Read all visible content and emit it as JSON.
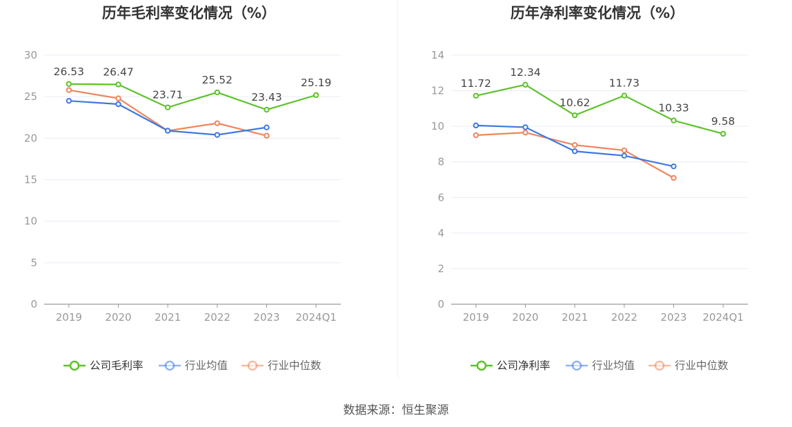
{
  "source_label": "数据来源：恒生聚源",
  "colors": {
    "company": "#5dc22a",
    "avg": "#3f78e0",
    "median": "#f0845c",
    "axis": "#999999",
    "grid": "#e9ecf5"
  },
  "chart_data": [
    {
      "type": "line",
      "title": "历年毛利率变化情况（%）",
      "categories": [
        "2019",
        "2020",
        "2021",
        "2022",
        "2023",
        "2024Q1"
      ],
      "ylim": [
        0,
        30
      ],
      "yticks": [
        0,
        5,
        10,
        15,
        20,
        25,
        30
      ],
      "grid": true,
      "legend": "bottom",
      "series": [
        {
          "name": "公司毛利率",
          "key": "company",
          "values": [
            26.53,
            26.47,
            23.71,
            25.52,
            23.43,
            25.19
          ],
          "labels": [
            "26.53",
            "26.47",
            "23.71",
            "25.52",
            "23.43",
            "25.19"
          ]
        },
        {
          "name": "行业均值",
          "key": "avg",
          "values": [
            24.5,
            24.1,
            20.9,
            20.4,
            21.3,
            null
          ]
        },
        {
          "name": "行业中位数",
          "key": "median",
          "values": [
            25.8,
            24.8,
            20.9,
            21.8,
            20.3,
            null
          ]
        }
      ]
    },
    {
      "type": "line",
      "title": "历年净利率变化情况（%）",
      "categories": [
        "2019",
        "2020",
        "2021",
        "2022",
        "2023",
        "2024Q1"
      ],
      "ylim": [
        0,
        14
      ],
      "yticks": [
        0,
        2,
        4,
        6,
        8,
        10,
        12,
        14
      ],
      "grid": true,
      "legend": "bottom",
      "series": [
        {
          "name": "公司净利率",
          "key": "company",
          "values": [
            11.72,
            12.34,
            10.62,
            11.73,
            10.33,
            9.58
          ],
          "labels": [
            "11.72",
            "12.34",
            "10.62",
            "11.73",
            "10.33",
            "9.58"
          ]
        },
        {
          "name": "行业均值",
          "key": "avg",
          "values": [
            10.05,
            9.95,
            8.6,
            8.35,
            7.75,
            null
          ]
        },
        {
          "name": "行业中位数",
          "key": "median",
          "values": [
            9.5,
            9.65,
            8.95,
            8.65,
            7.1,
            null
          ]
        }
      ]
    }
  ]
}
